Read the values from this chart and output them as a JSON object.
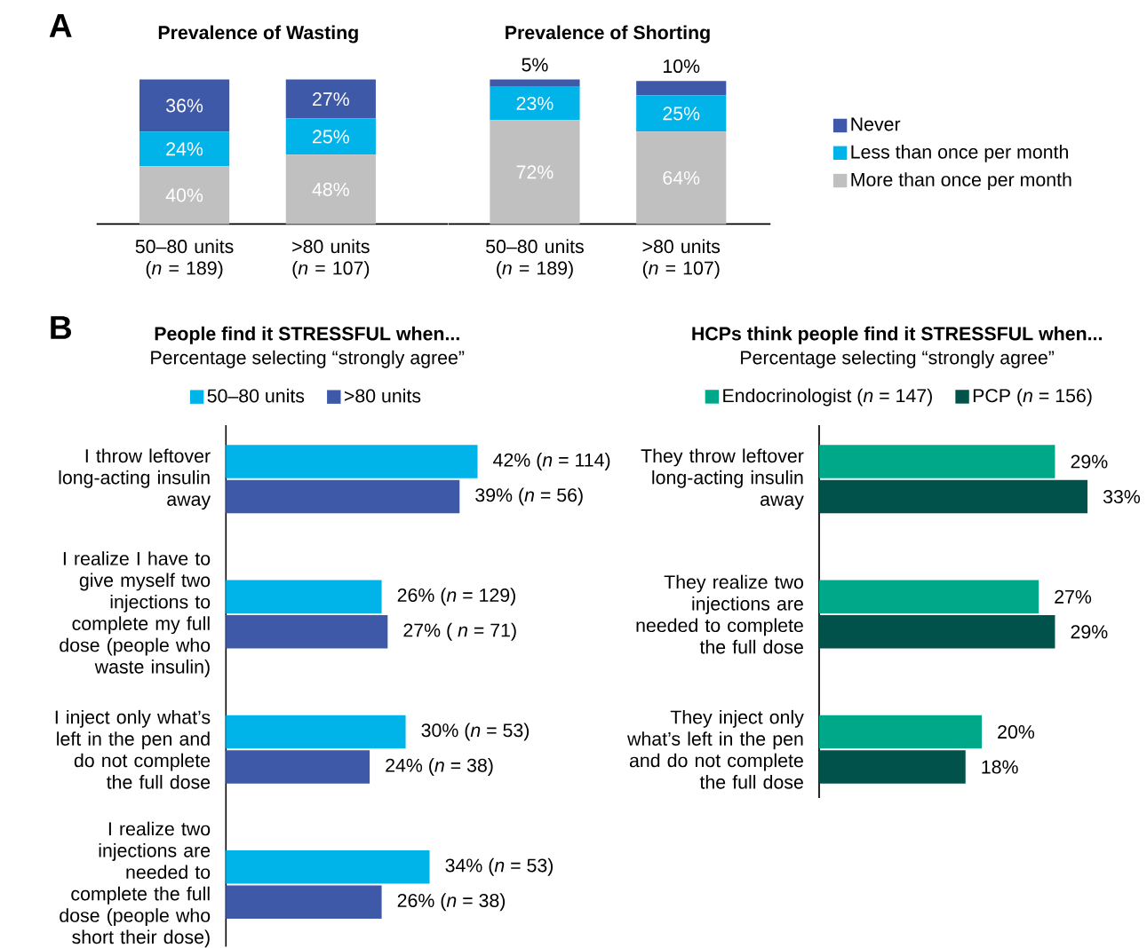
{
  "chart_data": [
    {
      "type": "bar",
      "stacked": true,
      "title": "Prevalence of Wasting",
      "annotations": [
        "A"
      ],
      "categories": [
        "50–80 units\n(*n* = 189)",
        ">80 units\n(*n* = 107)"
      ],
      "series": [
        {
          "color": "#c0c0c0",
          "values": [
            40,
            48
          ],
          "value_labels": [
            "40%",
            "48%"
          ]
        },
        {
          "color": "#00b3e9",
          "values": [
            24,
            25
          ],
          "value_labels": [
            "24%",
            "25%"
          ]
        },
        {
          "color": "#3f59a9",
          "values": [
            36,
            27
          ],
          "value_labels": [
            "36%",
            "27%"
          ]
        }
      ]
    },
    {
      "type": "bar",
      "stacked": true,
      "title": "Prevalence of Shorting",
      "legend": "right",
      "categories": [
        "50–80 units\n(*n* = 189)",
        ">80 units\n(*n* = 107)"
      ],
      "series": [
        {
          "name": "More than once per month",
          "color": "#c0c0c0",
          "values": [
            72,
            64
          ],
          "value_labels": [
            "72%",
            "64%"
          ]
        },
        {
          "name": "Less than once per month",
          "color": "#00b3e9",
          "values": [
            23,
            25
          ],
          "value_labels": [
            "23%",
            "25%"
          ]
        },
        {
          "name": "Never",
          "color": "#3f59a9",
          "values": [
            5,
            10
          ],
          "value_labels": [
            "5%",
            "10%"
          ]
        }
      ]
    },
    {
      "type": "bar",
      "orientation": "horizontal",
      "title": "People find it STRESSFUL when...",
      "subtitle": "Percentage selecting “strongly agree”",
      "annotations": [
        "B"
      ],
      "legend": "top",
      "categories": [
        "I throw leftover\nlong-acting insulin\naway",
        "I realize I have to\ngive myself two\ninjections to\ncomplete my full\ndose (people who\nwaste insulin)",
        "I inject only what’s\nleft in the pen and\ndo not complete\nthe full dose",
        "I realize two\ninjections are\nneeded to\ncomplete the full\ndose (people who\nshort their dose)"
      ],
      "series": [
        {
          "name": "50–80 units",
          "color": "#00b3e9",
          "values": [
            42,
            26,
            30,
            34
          ],
          "value_labels": [
            "42% (*n* = 114)",
            "26% (*n* = 129)",
            "30% (*n* = 53)",
            "34% (*n* = 53)"
          ]
        },
        {
          "name": ">80 units",
          "color": "#3f59a9",
          "values": [
            39,
            27,
            24,
            26
          ],
          "value_labels": [
            "39% (*n* = 56)",
            "27% ( *n* = 71)",
            "24% (*n* = 38)",
            "26% (*n* = 38)"
          ]
        }
      ]
    },
    {
      "type": "bar",
      "orientation": "horizontal",
      "title": "HCPs think people find it STRESSFUL when...",
      "subtitle": "Percentage selecting “strongly agree”",
      "legend": "top",
      "categories": [
        "They throw leftover\nlong-acting insulin\naway",
        "They realize two\ninjections are\nneeded to complete\nthe full dose",
        "They inject only\nwhat’s left in the pen\nand do not complete\nthe full dose"
      ],
      "series": [
        {
          "name": "Endocrinologist (*n* = 147)",
          "color": "#00a88a",
          "values": [
            29,
            27,
            20
          ],
          "value_labels": [
            "29%",
            "27%",
            "20%"
          ]
        },
        {
          "name": "PCP (*n* = 156)",
          "color": "#00524a",
          "values": [
            33,
            29,
            18
          ],
          "value_labels": [
            "33%",
            "29%",
            "18%"
          ]
        }
      ]
    }
  ]
}
